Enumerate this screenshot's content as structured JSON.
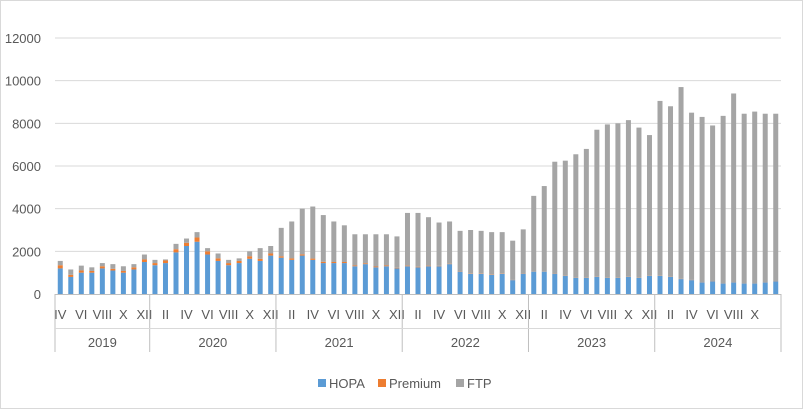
{
  "chart_data": {
    "type": "bar",
    "stacked": true,
    "ylim": [
      0,
      12000
    ],
    "yticks": [
      0,
      2000,
      4000,
      6000,
      8000,
      10000,
      12000
    ],
    "grid": true,
    "legend_position": "bottom",
    "years": [
      "2019",
      "2020",
      "2021",
      "2022",
      "2023",
      "2024"
    ],
    "months_per_year": [
      9,
      12,
      12,
      12,
      12,
      12
    ],
    "month_tick_labels": [
      "IV",
      "VI",
      "VIII",
      "X",
      "XII",
      "II",
      "IV",
      "VI",
      "VIII",
      "X",
      "XII",
      "II",
      "IV",
      "VI",
      "VIII",
      "X",
      "XII",
      "II",
      "IV",
      "VI",
      "VIII",
      "X",
      "XII",
      "II",
      "IV",
      "VI",
      "VIII",
      "X",
      "XII",
      "II",
      "IV",
      "VI",
      "VIII",
      "X"
    ],
    "series": [
      {
        "name": "HOPA",
        "color": "#5b9bd5",
        "values": [
          1200,
          800,
          1000,
          1000,
          1200,
          1100,
          1000,
          1150,
          1500,
          1350,
          1450,
          1950,
          2250,
          2450,
          1850,
          1550,
          1350,
          1450,
          1650,
          1550,
          1800,
          1700,
          1600,
          1800,
          1600,
          1450,
          1450,
          1450,
          1300,
          1400,
          1250,
          1300,
          1200,
          1300,
          1250,
          1300,
          1300,
          1400,
          1050,
          950,
          950,
          900,
          950,
          650,
          950,
          1050,
          1050,
          950,
          850,
          750,
          750,
          800,
          750,
          750,
          800,
          750,
          850,
          850,
          800,
          700,
          650,
          550,
          600,
          500,
          550,
          500,
          500,
          550,
          600
        ]
      },
      {
        "name": "Premium",
        "color": "#ed7d31",
        "values": [
          150,
          100,
          100,
          80,
          100,
          80,
          80,
          100,
          120,
          100,
          120,
          150,
          150,
          200,
          150,
          120,
          100,
          100,
          120,
          100,
          100,
          70,
          70,
          60,
          60,
          60,
          50,
          50,
          40,
          40,
          40,
          40,
          30,
          30,
          30,
          30,
          20,
          20,
          20,
          20,
          20,
          20,
          20,
          10,
          10,
          10,
          10,
          10,
          10,
          10,
          10,
          10,
          10,
          10,
          10,
          10,
          10,
          10,
          10,
          10,
          10,
          10,
          10,
          10,
          10,
          10,
          10,
          10,
          10
        ]
      },
      {
        "name": "FTP",
        "color": "#a5a5a5",
        "values": [
          200,
          250,
          230,
          170,
          150,
          220,
          220,
          150,
          230,
          150,
          50,
          250,
          200,
          250,
          150,
          230,
          150,
          120,
          230,
          500,
          350,
          1330,
          1730,
          2140,
          2440,
          2190,
          1900,
          1720,
          1460,
          1360,
          1510,
          1460,
          1470,
          2470,
          2520,
          2270,
          2030,
          1980,
          1890,
          2030,
          1990,
          1980,
          1930,
          1840,
          2070,
          3540,
          4000,
          5240,
          5390,
          5790,
          6040,
          6890,
          7190,
          7240,
          7340,
          7040,
          6590,
          8190,
          7990,
          8990,
          7840,
          7740,
          7290,
          7840,
          8840,
          7940,
          8040,
          7890,
          7840
        ]
      }
    ]
  }
}
